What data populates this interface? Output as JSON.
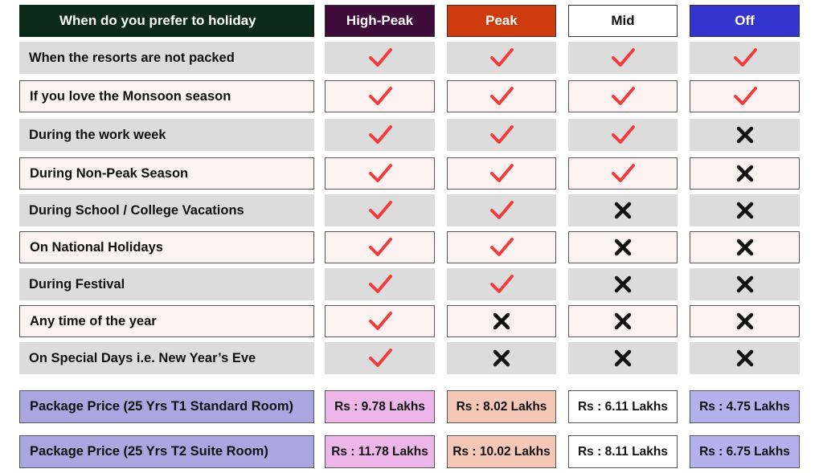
{
  "header": {
    "question": "When do you prefer to holiday",
    "columns": [
      {
        "label": "High-Peak",
        "bg": "#3f0b3b",
        "fg": "#ffffff"
      },
      {
        "label": "Peak",
        "bg": "#cf3a0e",
        "fg": "#ffffff"
      },
      {
        "label": "Mid",
        "bg": "#ffffff",
        "fg": "#111111"
      },
      {
        "label": "Off",
        "bg": "#3434cf",
        "fg": "#ffffff"
      }
    ]
  },
  "rows": [
    {
      "label": "When the resorts are not packed",
      "marks": [
        "check",
        "check",
        "check",
        "check"
      ]
    },
    {
      "label": "If you love the Monsoon season",
      "marks": [
        "check",
        "check",
        "check",
        "check"
      ]
    },
    {
      "label": "During the work week",
      "marks": [
        "check",
        "check",
        "check",
        "cross"
      ]
    },
    {
      "label": "During Non-Peak Season",
      "marks": [
        "check",
        "check",
        "check",
        "cross"
      ]
    },
    {
      "label": "During School / College Vacations",
      "marks": [
        "check",
        "check",
        "cross",
        "cross"
      ]
    },
    {
      "label": "On National Holidays",
      "marks": [
        "check",
        "check",
        "cross",
        "cross"
      ]
    },
    {
      "label": "During Festival",
      "marks": [
        "check",
        "check",
        "cross",
        "cross"
      ]
    },
    {
      "label": "Any time of the year",
      "marks": [
        "check",
        "cross",
        "cross",
        "cross"
      ]
    },
    {
      "label": "On Special Days i.e. New Year’s Eve",
      "marks": [
        "check",
        "cross",
        "cross",
        "cross"
      ]
    }
  ],
  "prices": [
    {
      "label": "Package Price (25 Yrs T1 Standard Room)",
      "values": [
        "Rs : 9.78 Lakhs",
        "Rs : 8.02 Lakhs",
        "Rs : 6.11 Lakhs",
        "Rs : 4.75 Lakhs"
      ]
    },
    {
      "label": "Package Price (25 Yrs T2 Suite Room)",
      "values": [
        "Rs : 11.78 Lakhs",
        "Rs : 10.02 Lakhs",
        "Rs : 8.11 Lakhs",
        "Rs : 6.75 Lakhs"
      ]
    }
  ],
  "colors": {
    "header_question_bg": "#0c2a1a",
    "row_gray": "#dcdcdc",
    "row_pink": "#fdf3f2",
    "check": "#f03c3c",
    "cross": "#111111",
    "price_label_bg": "#a9a6e0",
    "price_col_bgs": [
      "#ecb7e8",
      "#f4c7b7",
      "#ffffff",
      "#b4b2ec"
    ]
  },
  "icons": {
    "check": "check-icon",
    "cross": "cross-icon"
  }
}
